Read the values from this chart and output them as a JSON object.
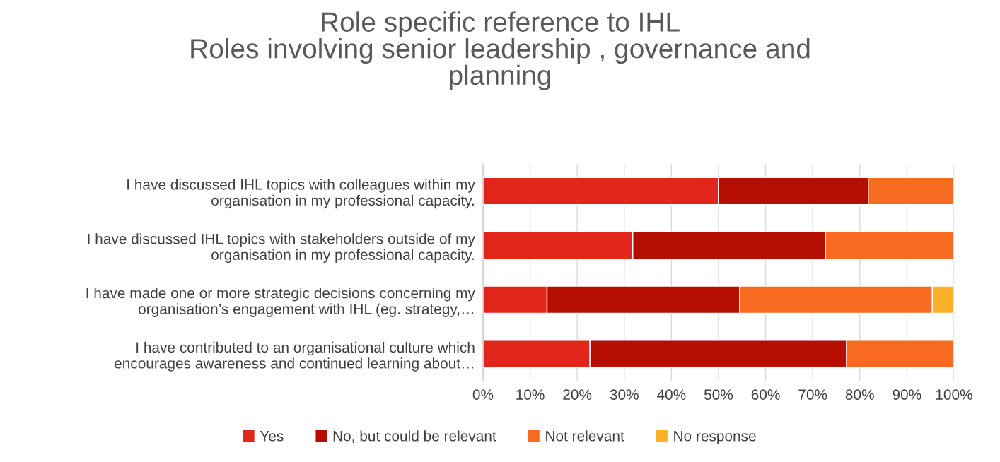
{
  "chart_data": {
    "type": "bar",
    "orientation": "horizontal",
    "stacked": true,
    "title": "Role specific reference to IHL\nRoles involving senior leadership , governance and\nplanning",
    "categories": [
      "I have discussed IHL topics with colleagues within my\norganisation in my professional capacity.",
      "I have discussed IHL topics with stakeholders outside of my\norganisation in my professional capacity.",
      "I have made one or more strategic decisions concerning my\norganisation’s engagement with IHL (eg. strategy,…",
      "I have contributed to an organisational culture which\nencourages awareness and continued learning about…"
    ],
    "series": [
      {
        "name": "Yes",
        "color": "#e3261b",
        "values": [
          50.0,
          31.8,
          13.6,
          22.7
        ]
      },
      {
        "name": "No, but could be relevant",
        "color": "#b50d00",
        "values": [
          31.8,
          40.9,
          40.9,
          54.5
        ]
      },
      {
        "name": "Not relevant",
        "color": "#f76a1f",
        "values": [
          18.2,
          27.3,
          40.9,
          22.8
        ]
      },
      {
        "name": "No response",
        "color": "#fbb22a",
        "values": [
          null,
          null,
          4.6,
          null
        ]
      }
    ],
    "xlim": [
      0,
      100
    ],
    "xticks": [
      {
        "value": 0,
        "label": "0%"
      },
      {
        "value": 10,
        "label": "10%"
      },
      {
        "value": 20,
        "label": "20%"
      },
      {
        "value": 30,
        "label": "30%"
      },
      {
        "value": 40,
        "label": "40%"
      },
      {
        "value": 50,
        "label": "50%"
      },
      {
        "value": 60,
        "label": "60%"
      },
      {
        "value": 70,
        "label": "70%"
      },
      {
        "value": 80,
        "label": "80%"
      },
      {
        "value": 90,
        "label": "90%"
      },
      {
        "value": 100,
        "label": "100%"
      }
    ],
    "grid": "x",
    "legend": "bottom"
  }
}
